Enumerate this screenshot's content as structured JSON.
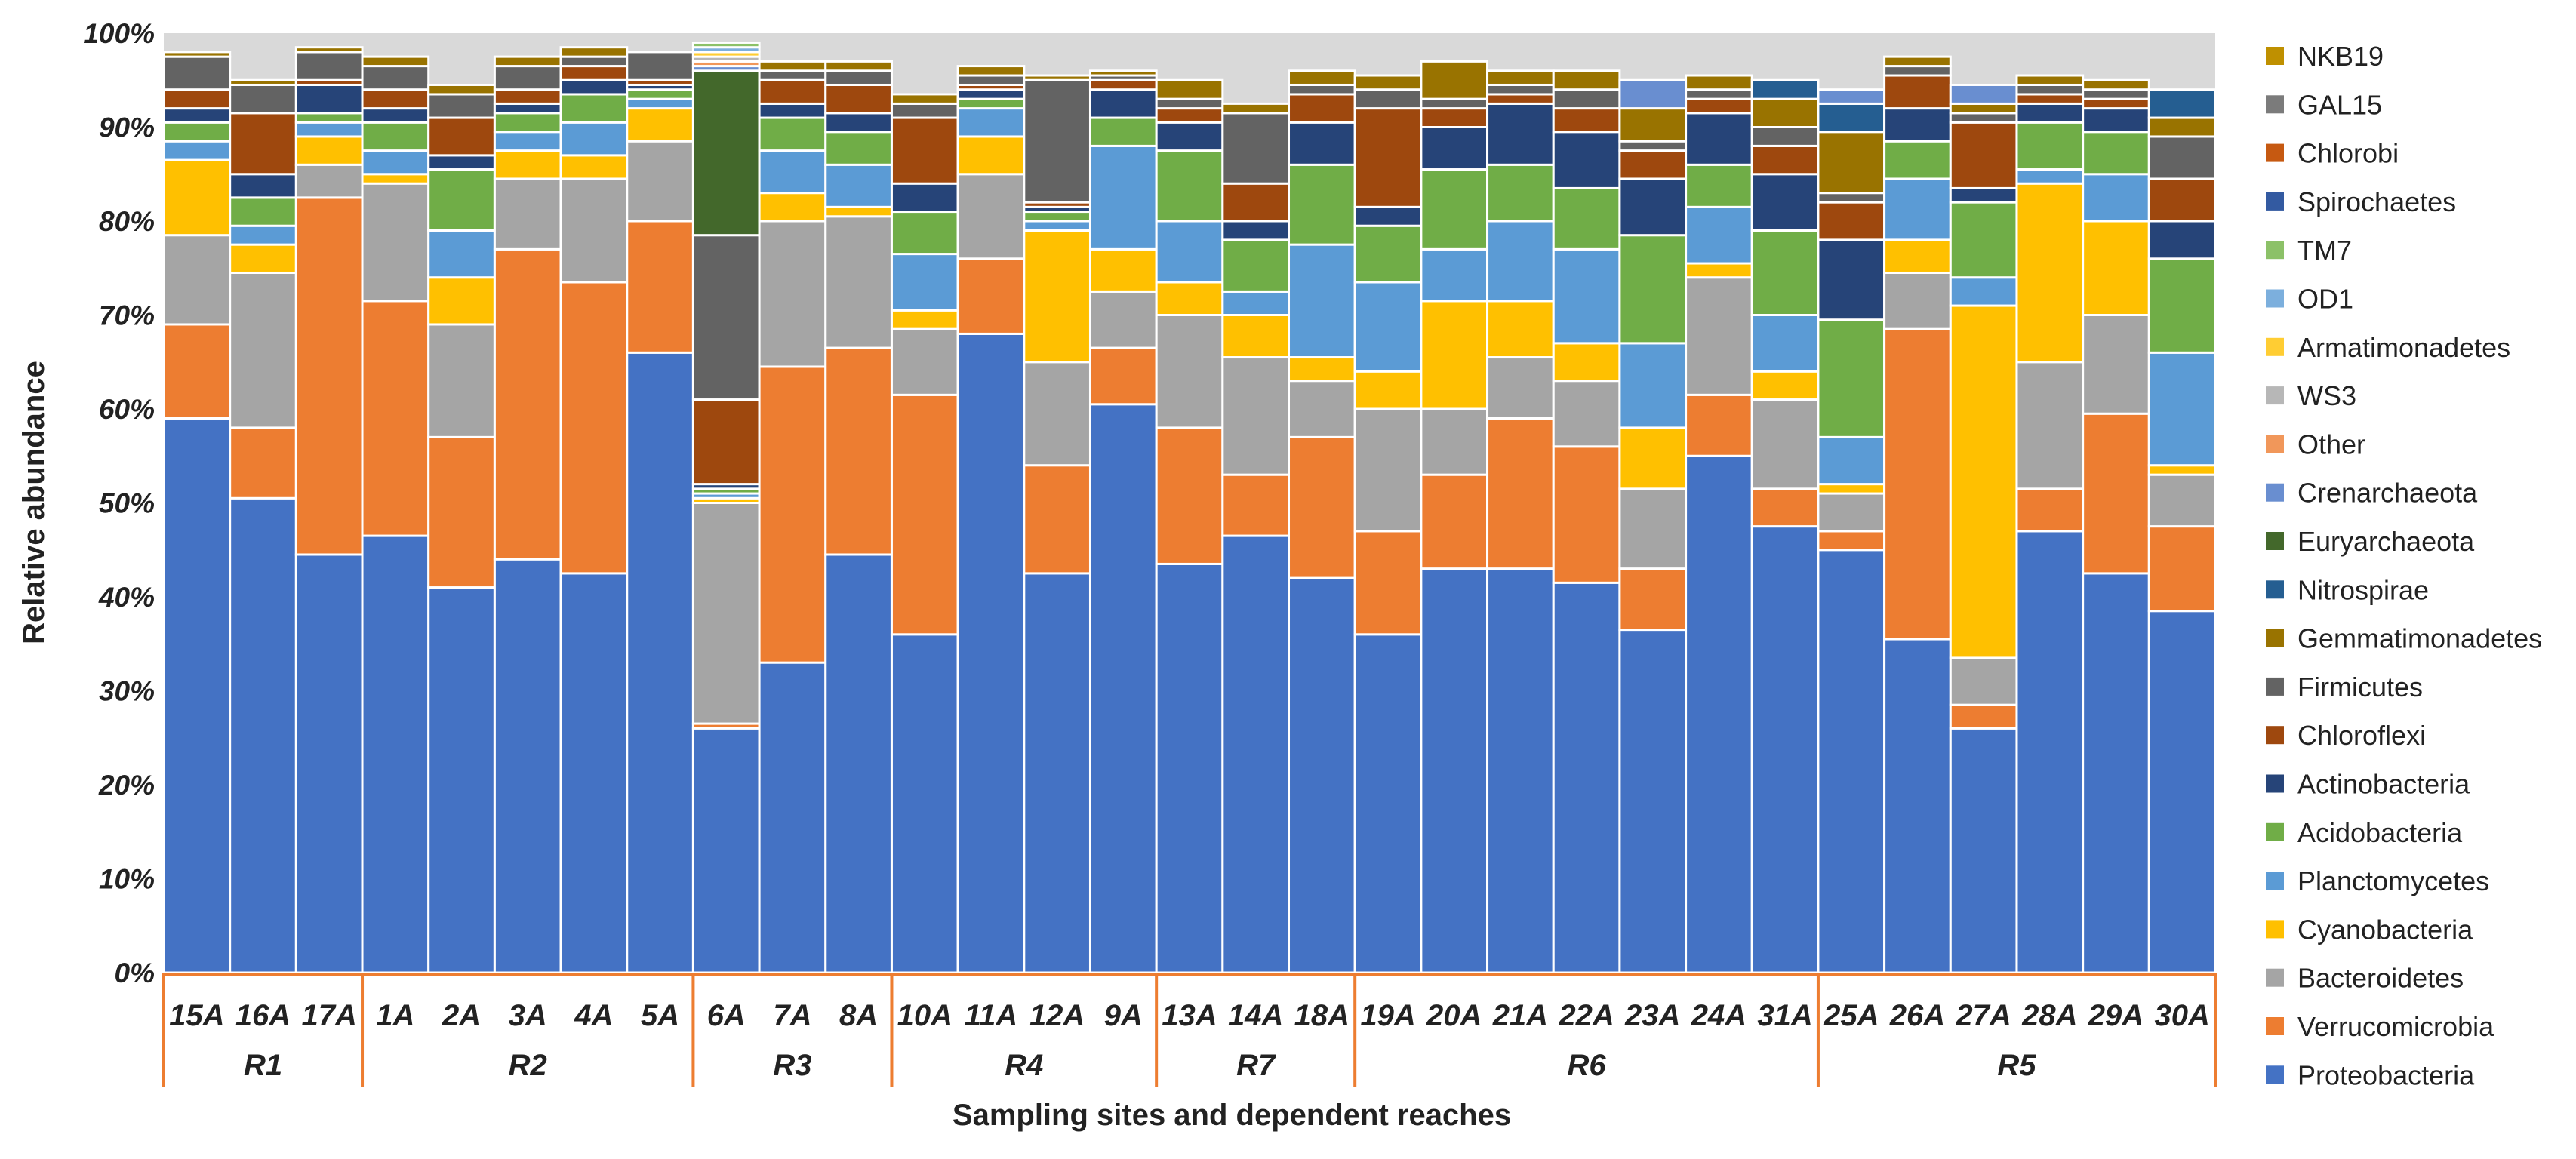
{
  "chart_data": {
    "type": "bar",
    "stacked": true,
    "normalized": true,
    "xlabel": "Sampling sites and dependent reaches",
    "ylabel": "Relative abundance",
    "ylim": [
      0,
      100
    ],
    "yticks": [
      "0%",
      "10%",
      "20%",
      "30%",
      "40%",
      "50%",
      "60%",
      "70%",
      "80%",
      "90%",
      "100%"
    ],
    "background": "#d9d9d9",
    "legend_position": "right",
    "categories": [
      "15A",
      "16A",
      "17A",
      "1A",
      "2A",
      "3A",
      "4A",
      "5A",
      "6A",
      "7A",
      "8A",
      "10A",
      "11A",
      "12A",
      "9A",
      "13A",
      "14A",
      "18A",
      "19A",
      "20A",
      "21A",
      "22A",
      "23A",
      "24A",
      "31A",
      "25A",
      "26A",
      "27A",
      "28A",
      "29A",
      "30A"
    ],
    "reaches": [
      {
        "name": "R1",
        "start": 0,
        "end": 2
      },
      {
        "name": "R2",
        "start": 3,
        "end": 7
      },
      {
        "name": "R3",
        "start": 8,
        "end": 10
      },
      {
        "name": "R4",
        "start": 11,
        "end": 14
      },
      {
        "name": "R7",
        "start": 15,
        "end": 17
      },
      {
        "name": "R6",
        "start": 18,
        "end": 24
      },
      {
        "name": "R5",
        "start": 25,
        "end": 30
      }
    ],
    "series": [
      {
        "name": "Proteobacteria",
        "color": "#4472C4",
        "values": [
          59,
          50.5,
          44.5,
          46.5,
          41,
          44,
          42.5,
          66,
          26,
          33,
          44.5,
          36,
          68,
          42.5,
          60.5,
          43.5,
          46.5,
          42,
          36,
          43,
          43,
          41.5,
          36.5,
          55,
          47.5,
          45,
          35.5,
          26,
          47,
          42.5,
          38.5
        ]
      },
      {
        "name": "Verrucomicrobia",
        "color": "#ED7D31",
        "values": [
          10,
          7.5,
          38,
          25,
          16,
          33,
          31,
          14,
          0.5,
          31.5,
          22,
          25.5,
          8,
          11.5,
          6,
          14.5,
          6.5,
          15,
          11,
          10,
          16,
          14.5,
          6.5,
          6.5,
          4,
          2,
          33,
          2.5,
          4.5,
          17,
          9
        ]
      },
      {
        "name": "Bacteroidetes",
        "color": "#A5A5A5",
        "values": [
          9.5,
          16.5,
          3.5,
          12.5,
          12,
          7.5,
          11,
          8.5,
          23.5,
          15.5,
          14,
          7,
          9,
          11,
          6,
          12,
          12.5,
          6,
          13,
          7,
          6.5,
          7,
          8.5,
          12.5,
          9.5,
          4,
          6,
          5,
          13.5,
          10.5,
          5.5
        ]
      },
      {
        "name": "Cyanobacteria",
        "color": "#FFC000",
        "values": [
          8,
          3,
          3,
          1,
          5,
          3,
          2.5,
          3.5,
          0.5,
          3,
          1,
          2,
          4,
          14,
          4.5,
          3.5,
          4.5,
          2.5,
          4,
          11.5,
          6,
          4,
          6.5,
          1.5,
          3,
          1,
          3.5,
          37.5,
          19,
          10,
          1
        ]
      },
      {
        "name": "Planctomycetes",
        "color": "#5B9BD5",
        "values": [
          2,
          2,
          1.5,
          2.5,
          5,
          2,
          3.5,
          1,
          0.5,
          4.5,
          4.5,
          6,
          3,
          1,
          11,
          6.5,
          2.5,
          12,
          9.5,
          5.5,
          8.5,
          10,
          9,
          6,
          6,
          5,
          6.5,
          3,
          1.5,
          5,
          12
        ]
      },
      {
        "name": "Acidobacteria",
        "color": "#70AD47",
        "values": [
          2,
          3,
          1,
          3,
          6.5,
          2,
          3,
          1,
          0.5,
          3.5,
          3.5,
          4.5,
          1,
          1,
          3,
          7.5,
          5.5,
          8.5,
          6,
          8.5,
          6,
          6.5,
          11.5,
          4.5,
          9,
          12.5,
          4,
          8,
          5,
          4.5,
          10
        ]
      },
      {
        "name": "Actinobacteria",
        "color": "#264478",
        "values": [
          1.5,
          2.5,
          3,
          1.5,
          1.5,
          1,
          1.5,
          0.5,
          0.5,
          1.5,
          2,
          3,
          1,
          0.5,
          3,
          3,
          2,
          4.5,
          2,
          4.5,
          6.5,
          6,
          6,
          5.5,
          6,
          8.5,
          3.5,
          1.5,
          2,
          2.5,
          4
        ]
      },
      {
        "name": "Chloroflexi",
        "color": "#9E480E",
        "values": [
          2,
          6.5,
          0.5,
          2,
          4,
          1.5,
          1.5,
          0.5,
          9,
          2.5,
          3,
          7,
          0.5,
          0.5,
          1,
          1.5,
          4,
          3,
          10.5,
          2,
          1,
          2.5,
          3,
          1.5,
          3,
          4,
          3.5,
          7,
          1,
          1,
          4.5
        ]
      },
      {
        "name": "Firmicutes",
        "color": "#636363",
        "values": [
          3.5,
          3,
          3,
          2.5,
          2.5,
          2.5,
          1,
          3,
          17.5,
          1,
          1.5,
          1.5,
          1,
          13,
          0.5,
          1,
          7.5,
          1,
          2,
          1,
          1,
          2,
          1,
          1,
          2,
          1,
          1,
          1,
          1,
          1,
          4.5
        ]
      },
      {
        "name": "Gemmatimonadetes",
        "color": "#997300",
        "values": [
          0.5,
          0.5,
          0.5,
          1,
          1,
          1,
          1,
          0,
          0,
          1,
          1,
          1,
          1,
          0.5,
          0.5,
          2,
          1,
          1.5,
          1.5,
          4,
          1.5,
          2,
          3.5,
          1.5,
          3,
          6.5,
          1,
          1,
          1,
          1,
          2
        ]
      },
      {
        "name": "Nitrospirae",
        "color": "#255E91",
        "values": [
          0,
          0,
          0,
          0,
          0,
          0,
          0,
          0,
          0,
          0,
          0,
          0,
          0,
          0,
          0,
          0,
          0,
          0,
          0,
          0,
          0,
          0,
          0,
          0,
          2,
          3,
          0,
          0,
          0,
          0,
          3
        ]
      },
      {
        "name": "Euryarchaeota",
        "color": "#43682B",
        "values": [
          0,
          0,
          0,
          0,
          0,
          0,
          0,
          0,
          17.5,
          0,
          0,
          0,
          0,
          0,
          0,
          0,
          0,
          0,
          0,
          0,
          0,
          0,
          0,
          0,
          0,
          0,
          0,
          0,
          0,
          0,
          0
        ]
      },
      {
        "name": "Crenarchaeota",
        "color": "#698ED0",
        "values": [
          0,
          0,
          0,
          0,
          0,
          0,
          0,
          0,
          0.5,
          0,
          0,
          0,
          0,
          0,
          0,
          0,
          0,
          0,
          0,
          0,
          0,
          0,
          3,
          0,
          0,
          1.5,
          0,
          2,
          0,
          0,
          0
        ]
      },
      {
        "name": "Other",
        "color": "#F1975A",
        "values": [
          0,
          0,
          0,
          0,
          0,
          0,
          0,
          0,
          0.5,
          0,
          0,
          0,
          0,
          0,
          0,
          0,
          0,
          0,
          0,
          0,
          0,
          0,
          0,
          0,
          0,
          0,
          0,
          0,
          0,
          0,
          0
        ]
      },
      {
        "name": "WS3",
        "color": "#B7B7B7",
        "values": [
          0,
          0,
          0,
          0,
          0,
          0,
          0,
          0,
          0.5,
          0,
          0,
          0,
          0,
          0,
          0,
          0,
          0,
          0,
          0,
          0,
          0,
          0,
          0,
          0,
          0,
          0,
          0,
          0,
          0,
          0,
          0
        ]
      },
      {
        "name": "Armatimonadetes",
        "color": "#FFCD33",
        "values": [
          0,
          0,
          0,
          0,
          0,
          0,
          0,
          0,
          0.5,
          0,
          0,
          0,
          0,
          0,
          0,
          0,
          0,
          0,
          0,
          0,
          0,
          0,
          0,
          0,
          0,
          0,
          0,
          0,
          0,
          0,
          0
        ]
      },
      {
        "name": "OD1",
        "color": "#7CAFDD",
        "values": [
          0,
          0,
          0,
          0,
          0,
          0,
          0,
          0,
          0.5,
          0,
          0,
          0,
          0,
          0,
          0,
          0,
          0,
          0,
          0,
          0,
          0,
          0,
          0,
          0,
          0,
          0,
          0,
          0,
          0,
          0,
          0
        ]
      },
      {
        "name": "TM7",
        "color": "#8CC168",
        "values": [
          0,
          0,
          0,
          0,
          0,
          0,
          0,
          0,
          0.5,
          0,
          0,
          0,
          0,
          0,
          0,
          0,
          0,
          0,
          0,
          0,
          0,
          0,
          0,
          0,
          0,
          0,
          0,
          0,
          0,
          0,
          0
        ]
      },
      {
        "name": "Spirochaetes",
        "color": "#335AA1",
        "values": [
          0,
          0,
          0,
          0,
          0,
          0,
          0,
          0,
          0,
          0,
          0,
          0,
          0,
          0,
          0,
          0,
          0,
          0,
          0,
          0,
          0,
          0,
          0,
          0,
          0,
          0,
          0,
          0,
          0,
          0,
          0
        ]
      },
      {
        "name": "Chlorobi",
        "color": "#C65911",
        "values": [
          0,
          0,
          0,
          0,
          0,
          0,
          0,
          0,
          0,
          0,
          0,
          0,
          0,
          0,
          0,
          0,
          0,
          0,
          0,
          0,
          0,
          0,
          0,
          0,
          0,
          0,
          0,
          0,
          0,
          0,
          0
        ]
      },
      {
        "name": "GAL15",
        "color": "#7B7B7B",
        "values": [
          0,
          0,
          0,
          0,
          0,
          0,
          0,
          0,
          0,
          0,
          0,
          0,
          0,
          0,
          0,
          0,
          0,
          0,
          0,
          0,
          0,
          0,
          0,
          0,
          0,
          0,
          0,
          0,
          0,
          0,
          0
        ]
      },
      {
        "name": "NKB19",
        "color": "#BF9000",
        "values": [
          0,
          0,
          0,
          0,
          0,
          0,
          0,
          0,
          0,
          0,
          0,
          0,
          0,
          0,
          0,
          0,
          0,
          0,
          0,
          0,
          0,
          0,
          0,
          0,
          0,
          0,
          0,
          0,
          0,
          0,
          0
        ]
      }
    ]
  }
}
